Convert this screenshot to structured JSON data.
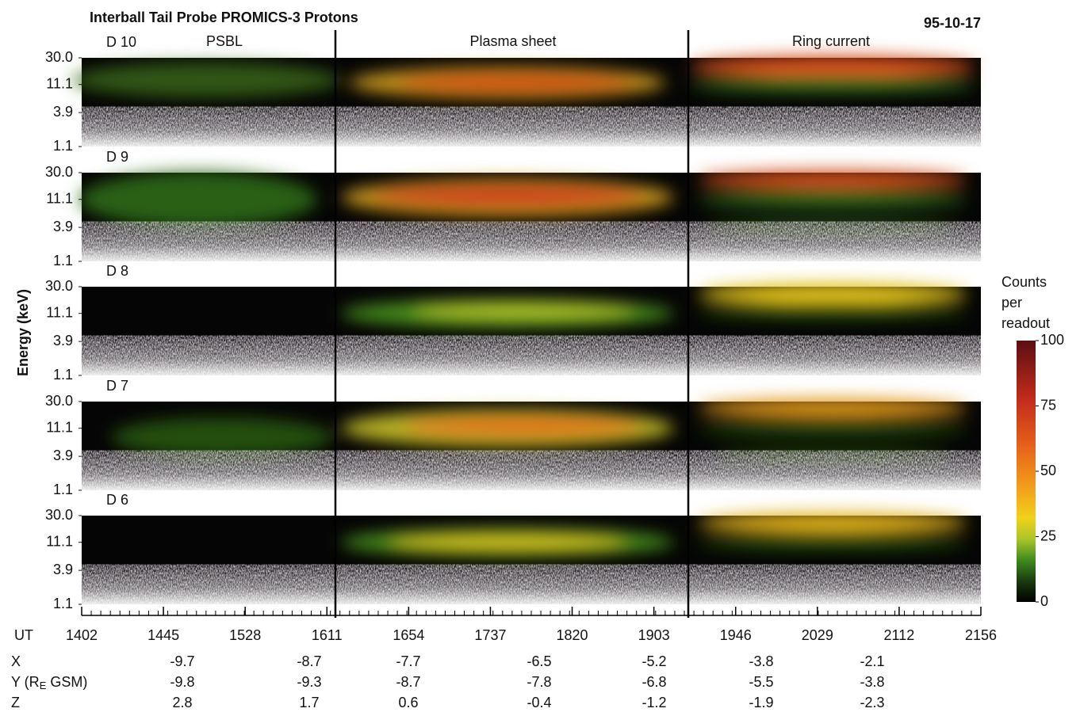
{
  "chart_data": {
    "type": "spectrogram",
    "title": "Interball Tail Probe PROMICS-3 Protons",
    "date": "95-10-17",
    "y_label": "Energy (keV)",
    "x_label": "UT",
    "log_y": true,
    "regions": [
      "PSBL",
      "Plasma sheet",
      "Ring current"
    ],
    "panels": [
      {
        "label": "D 10"
      },
      {
        "label": "D 9"
      },
      {
        "label": "D 8"
      },
      {
        "label": "D 7"
      },
      {
        "label": "D 6"
      }
    ],
    "ylim": [
      1.1,
      30
    ],
    "yticks": [
      {
        "value": 30,
        "label": "30.0"
      },
      11.1,
      3.9,
      1.1
    ],
    "xticks": [
      "1402",
      "1445",
      "1528",
      "1611",
      "1654",
      "1737",
      "1820",
      "1903",
      "1946",
      "2029",
      "2112",
      "2156"
    ],
    "colorbar": {
      "title": [
        "Counts",
        "per",
        "readout"
      ],
      "lim": [
        0,
        100
      ],
      "ticks": [
        100,
        75,
        50,
        25,
        0
      ]
    },
    "position_rows": [
      {
        "label": "X",
        "values": [
          -9.7,
          -8.7,
          -7.7,
          -6.5,
          -5.2,
          -3.8,
          -2.1
        ]
      },
      {
        "label_parts": [
          "Y (R",
          "E",
          " GSM)"
        ],
        "values": [
          -9.8,
          -9.3,
          -8.7,
          -7.8,
          -6.8,
          -5.5,
          -3.8
        ]
      },
      {
        "label": "Z",
        "values": [
          2.8,
          1.7,
          0.6,
          -0.4,
          -1.2,
          -1.9,
          -2.3
        ]
      }
    ]
  }
}
